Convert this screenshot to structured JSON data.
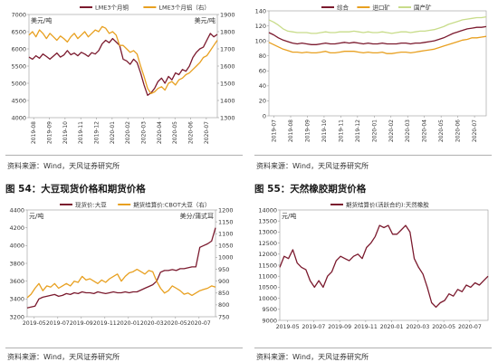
{
  "charts": {
    "c1": {
      "source": "资料来源：Wind，天风证券研究所",
      "chart_data": {
        "type": "line",
        "left_unit": "美元/吨",
        "right_unit": "美元/吨",
        "ylim": [
          4000,
          7000
        ],
        "yticks": [
          "7000",
          "6500",
          "6000",
          "5500",
          "5000",
          "4500",
          "4000"
        ],
        "y2lim": [
          1300,
          1900
        ],
        "y2ticks": [
          "1900",
          "1800",
          "1700",
          "1600",
          "1500",
          "1400",
          "1300"
        ],
        "xticks": [
          "2019-08",
          "2019-09",
          "2019-10",
          "2019-11",
          "2019-12",
          "2020-01",
          "2020-02",
          "2020-03",
          "2020-04",
          "2020-05",
          "2020-06",
          "2020-07"
        ],
        "series": [
          {
            "name": "LME3个月铜",
            "axis": "left",
            "color": "#7b1a2e",
            "values": [
              5760,
              5700,
              5800,
              5730,
              5850,
              5780,
              5700,
              5790,
              5880,
              5760,
              5820,
              5950,
              5830,
              5880,
              5800,
              5900,
              5850,
              5780,
              5890,
              5850,
              5950,
              6150,
              6250,
              6180,
              6300,
              6200,
              6100,
              5700,
              5650,
              5550,
              5700,
              5600,
              5300,
              4950,
              4650,
              4720,
              4850,
              5050,
              5150,
              5000,
              5200,
              5100,
              5300,
              5250,
              5400,
              5350,
              5500,
              5750,
              5900,
              6000,
              6050,
              6250,
              6450,
              6350,
              6420
            ]
          },
          {
            "name": "LME3个月铝（右）",
            "axis": "right",
            "color": "#e8a020",
            "values": [
              1780,
              1800,
              1770,
              1810,
              1790,
              1760,
              1790,
              1770,
              1750,
              1775,
              1760,
              1740,
              1770,
              1790,
              1760,
              1780,
              1800,
              1770,
              1790,
              1810,
              1800,
              1830,
              1820,
              1790,
              1800,
              1780,
              1720,
              1720,
              1700,
              1680,
              1690,
              1670,
              1600,
              1540,
              1470,
              1440,
              1450,
              1470,
              1480,
              1460,
              1500,
              1510,
              1490,
              1520,
              1530,
              1550,
              1560,
              1580,
              1600,
              1620,
              1650,
              1660,
              1690,
              1720,
              1750
            ]
          }
        ]
      }
    },
    "c2": {
      "source": "资料来源：Wind，天风证券研究所",
      "chart_data": {
        "type": "line",
        "ylim": [
          0,
          140
        ],
        "yticks": [
          "140",
          "120",
          "100",
          "80",
          "60",
          "40",
          "20",
          "0"
        ],
        "xticks": [
          "2019-07",
          "2019-08",
          "2019-09",
          "2019-10",
          "2019-11",
          "2019-12",
          "2020-01",
          "2020-02",
          "2020-03",
          "2020-04",
          "2020-05",
          "2020-06",
          "2020-07"
        ],
        "series": [
          {
            "name": "综合",
            "color": "#7b1a2e",
            "values": [
              111,
              108,
              104,
              101,
              99,
              97,
              96,
              97,
              96,
              95,
              95,
              96,
              97,
              96,
              96,
              97,
              98,
              97,
              98,
              97,
              96,
              97,
              96,
              96,
              97,
              96,
              96,
              96,
              97,
              97,
              96,
              97,
              97,
              98,
              99,
              100,
              102,
              104,
              107,
              110,
              112,
              114,
              116,
              117,
              118,
              118,
              119
            ]
          },
          {
            "name": "进口矿",
            "color": "#e8a020",
            "values": [
              98,
              95,
              92,
              89,
              87,
              85,
              85,
              84,
              85,
              84,
              84,
              85,
              86,
              84,
              84,
              85,
              86,
              86,
              86,
              85,
              84,
              85,
              84,
              84,
              85,
              83,
              83,
              84,
              85,
              85,
              84,
              85,
              86,
              87,
              88,
              89,
              91,
              93,
              95,
              97,
              99,
              101,
              102,
              104,
              104,
              105,
              106
            ]
          },
          {
            "name": "国产矿",
            "color": "#c8dc8a",
            "values": [
              128,
              125,
              121,
              116,
              113,
              112,
              111,
              111,
              111,
              110,
              110,
              111,
              112,
              111,
              111,
              112,
              112,
              112,
              113,
              112,
              111,
              112,
              111,
              111,
              112,
              111,
              110,
              111,
              112,
              112,
              111,
              112,
              113,
              113,
              114,
              115,
              117,
              119,
              122,
              124,
              126,
              128,
              129,
              130,
              131,
              131,
              132
            ]
          }
        ]
      }
    },
    "c3": {
      "fig_title": "图 54：大豆现货价格和期货价格",
      "source": "资料来源：Wind，天风证券研究所",
      "chart_data": {
        "type": "line",
        "left_unit": "元/吨",
        "right_unit": "美分/蒲式耳",
        "ylim": [
          3200,
          4400
        ],
        "yticks": [
          "4400",
          "4200",
          "4000",
          "3800",
          "3600",
          "3400",
          "3200"
        ],
        "y2lim": [
          750,
          1200
        ],
        "y2ticks": [
          "1200",
          "1150",
          "1100",
          "1050",
          "1000",
          "950",
          "900",
          "850",
          "800",
          "750"
        ],
        "xticks": [
          "2019-05",
          "2019-07",
          "2019-09",
          "2019-11",
          "2020-01",
          "2020-03",
          "2020-05",
          "2020-07"
        ],
        "series": [
          {
            "name": "现货价:大豆",
            "axis": "left",
            "color": "#7b1a2e",
            "values": [
              3300,
              3310,
              3320,
              3400,
              3420,
              3430,
              3440,
              3450,
              3430,
              3440,
              3460,
              3450,
              3470,
              3460,
              3480,
              3470,
              3470,
              3460,
              3480,
              3470,
              3460,
              3470,
              3480,
              3470,
              3470,
              3480,
              3470,
              3480,
              3480,
              3500,
              3520,
              3540,
              3560,
              3600,
              3700,
              3720,
              3720,
              3730,
              3720,
              3740,
              3740,
              3750,
              3760,
              3760,
              3980,
              4000,
              4020,
              4050,
              4200
            ]
          },
          {
            "name": "期货结算价:CBOT大豆（右）",
            "axis": "right",
            "color": "#e8a020",
            "values": [
              830,
              845,
              870,
              890,
              860,
              880,
              875,
              890,
              870,
              880,
              890,
              880,
              900,
              895,
              920,
              905,
              910,
              900,
              890,
              905,
              895,
              910,
              920,
              930,
              900,
              920,
              935,
              940,
              950,
              940,
              930,
              945,
              940,
              900,
              870,
              850,
              860,
              880,
              870,
              860,
              845,
              850,
              840,
              850,
              860,
              865,
              870,
              880,
              875
            ]
          }
        ]
      }
    },
    "c4": {
      "fig_title": "图 55：天然橡胶期货价格",
      "source": "资料来源：Wind，天风证券研究所",
      "chart_data": {
        "type": "line",
        "left_unit": "元/吨",
        "ylim": [
          9000,
          14000
        ],
        "yticks": [
          "14000",
          "13500",
          "13000",
          "12500",
          "12000",
          "11500",
          "11000",
          "10500",
          "10000",
          "9500",
          "9000"
        ],
        "xticks": [
          "2019-05",
          "2019-07",
          "2019-09",
          "2019-11",
          "2020-01",
          "2020-03",
          "2020-05",
          "2020-07"
        ],
        "series": [
          {
            "name": "期货结算价(活跃合约):天然橡胶",
            "color": "#7b1a2e",
            "values": [
              11400,
              11900,
              11800,
              12200,
              11600,
              11400,
              11300,
              10800,
              10500,
              10800,
              10500,
              11000,
              11200,
              11700,
              11900,
              11800,
              11700,
              11900,
              12000,
              11800,
              12300,
              12500,
              12800,
              13300,
              13200,
              13300,
              12900,
              12900,
              13100,
              13300,
              13000,
              11800,
              11400,
              11100,
              10500,
              9800,
              9600,
              9800,
              9900,
              10200,
              10100,
              10400,
              10300,
              10600,
              10500,
              10700,
              10600,
              10800,
              11000
            ]
          }
        ]
      }
    }
  }
}
